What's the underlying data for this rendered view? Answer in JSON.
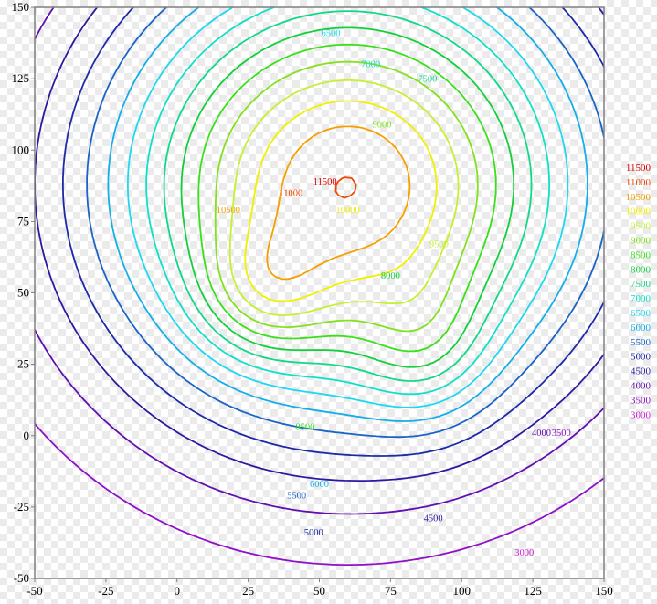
{
  "chart_data": {
    "type": "contour",
    "title": "",
    "xlabel": "",
    "ylabel": "",
    "xlim": [
      -50,
      150
    ],
    "ylim": [
      -50,
      150
    ],
    "x_ticks": [
      "-50",
      "-25",
      "0",
      "25",
      "50",
      "75",
      "100",
      "125",
      "150"
    ],
    "y_ticks": [
      "-50",
      "-25",
      "0",
      "25",
      "50",
      "75",
      "100",
      "125",
      "150"
    ],
    "grid": false,
    "legend_position": "right",
    "levels": [
      {
        "value": 11500,
        "label": "11500",
        "color": "#e00000"
      },
      {
        "value": 11000,
        "label": "11000",
        "color": "#ef4a00"
      },
      {
        "value": 10500,
        "label": "10500",
        "color": "#f5a000"
      },
      {
        "value": 10000,
        "label": "10000",
        "color": "#f0f000"
      },
      {
        "value": 9500,
        "label": "9500",
        "color": "#c6f032"
      },
      {
        "value": 9000,
        "label": "9000",
        "color": "#82e21e"
      },
      {
        "value": 8500,
        "label": "8500",
        "color": "#3ae01a"
      },
      {
        "value": 8000,
        "label": "8000",
        "color": "#12d03c"
      },
      {
        "value": 7500,
        "label": "7500",
        "color": "#11d88a"
      },
      {
        "value": 7000,
        "label": "7000",
        "color": "#10e0c8"
      },
      {
        "value": 6500,
        "label": "6500",
        "color": "#1ed8f0"
      },
      {
        "value": 6000,
        "label": "6000",
        "color": "#14aee8"
      },
      {
        "value": 5500,
        "label": "5500",
        "color": "#1a64c8"
      },
      {
        "value": 5000,
        "label": "5000",
        "color": "#1c2aa8"
      },
      {
        "value": 4500,
        "label": "4500",
        "color": "#2e1aa0"
      },
      {
        "value": 4000,
        "label": "4000",
        "color": "#6010b0"
      },
      {
        "value": 3500,
        "label": "3500",
        "color": "#9010c8"
      },
      {
        "value": 3000,
        "label": "3000",
        "color": "#d020d8"
      }
    ],
    "field": {
      "base": 3000,
      "gain": 8000,
      "peaks": [
        {
          "x": 60,
          "y": 88,
          "amplitude": 1.0,
          "rx": 85,
          "ry": 80
        },
        {
          "x": 30,
          "y": 50,
          "amplitude": 0.18,
          "rx": 22,
          "ry": 22
        },
        {
          "x": 88,
          "y": 30,
          "amplitude": 0.15,
          "rx": 22,
          "ry": 26
        }
      ]
    },
    "contour_labels": [
      {
        "level": 11500,
        "x": 52,
        "y": 88
      },
      {
        "level": 11000,
        "x": 40,
        "y": 84
      },
      {
        "level": 10500,
        "x": 18,
        "y": 78
      },
      {
        "level": 10000,
        "x": 60,
        "y": 78
      },
      {
        "level": 9500,
        "x": 92,
        "y": 66
      },
      {
        "level": 9000,
        "x": 72,
        "y": 108
      },
      {
        "level": 8500,
        "x": 45,
        "y": 2
      },
      {
        "level": 8000,
        "x": 75,
        "y": 55
      },
      {
        "level": 7500,
        "x": 88,
        "y": 124
      },
      {
        "level": 7000,
        "x": 68,
        "y": 129
      },
      {
        "level": 6500,
        "x": 54,
        "y": 140
      },
      {
        "level": 6000,
        "x": 50,
        "y": -18
      },
      {
        "level": 5500,
        "x": 42,
        "y": -22
      },
      {
        "level": 5000,
        "x": 48,
        "y": -35
      },
      {
        "level": 4500,
        "x": 90,
        "y": -30
      },
      {
        "level": 4000,
        "x": 128,
        "y": 0
      },
      {
        "level": 3500,
        "x": 135,
        "y": 0
      },
      {
        "level": 3000,
        "x": 122,
        "y": -42
      }
    ]
  }
}
